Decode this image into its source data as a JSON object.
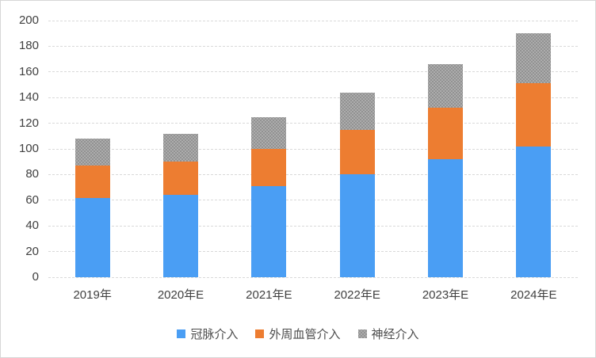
{
  "chart_data": {
    "type": "bar",
    "stacked": true,
    "title": "",
    "xlabel": "",
    "ylabel": "",
    "categories": [
      "2019年",
      "2020年E",
      "2021年E",
      "2022年E",
      "2023年E",
      "2024年E"
    ],
    "series": [
      {
        "name": "冠脉介入",
        "color": "#4a9ef4",
        "pattern": "solid",
        "values": [
          62,
          64,
          71,
          80,
          92,
          102
        ]
      },
      {
        "name": "外周血管介入",
        "color": "#ed7d31",
        "pattern": "solid",
        "values": [
          25,
          26,
          29,
          35,
          40,
          49
        ]
      },
      {
        "name": "神经介入",
        "color": "#acacac",
        "pattern": "dots",
        "values": [
          21,
          22,
          25,
          29,
          34,
          39
        ]
      }
    ],
    "stack_totals": [
      108,
      112,
      125,
      144,
      166,
      190
    ],
    "ylim": [
      0,
      200
    ],
    "ytick_step": 20,
    "yticks": [
      0,
      20,
      40,
      60,
      80,
      100,
      120,
      140,
      160,
      180,
      200
    ],
    "grid": true,
    "gridline_style": "dashed",
    "legend_position": "bottom"
  },
  "colors": {
    "gridline": "#d9d9d9",
    "axis_text": "#404040",
    "legend_text": "#4d4d4d",
    "frame_border": "#d6d6d6",
    "background": "#ffffff"
  }
}
